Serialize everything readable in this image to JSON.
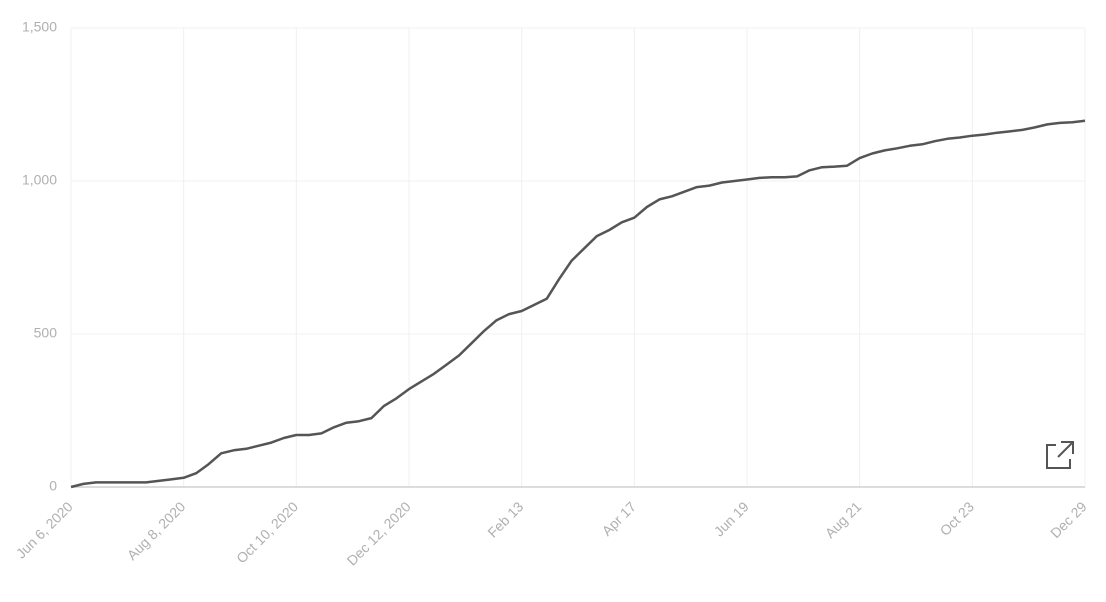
{
  "chart_data": {
    "type": "line",
    "categories": [
      "Jun 6, 2020",
      null,
      null,
      null,
      null,
      null,
      null,
      null,
      null,
      "Aug 8, 2020",
      null,
      null,
      null,
      null,
      null,
      null,
      null,
      null,
      "Oct 10, 2020",
      null,
      null,
      null,
      null,
      null,
      null,
      null,
      null,
      "Dec 12, 2020",
      null,
      null,
      null,
      null,
      null,
      null,
      null,
      null,
      "Feb 13",
      null,
      null,
      null,
      null,
      null,
      null,
      null,
      null,
      "Apr 17",
      null,
      null,
      null,
      null,
      null,
      null,
      null,
      null,
      "Jun 19",
      null,
      null,
      null,
      null,
      null,
      null,
      null,
      null,
      "Aug 21",
      null,
      null,
      null,
      null,
      null,
      null,
      null,
      null,
      "Oct 23",
      null,
      null,
      null,
      null,
      null,
      null,
      null,
      null,
      "Dec 29"
    ],
    "values": [
      0,
      10,
      15,
      15,
      15,
      15,
      15,
      20,
      25,
      30,
      45,
      75,
      110,
      120,
      125,
      135,
      145,
      160,
      170,
      170,
      175,
      195,
      210,
      215,
      225,
      265,
      290,
      320,
      345,
      370,
      400,
      430,
      470,
      510,
      545,
      565,
      575,
      595,
      615,
      680,
      740,
      780,
      820,
      840,
      865,
      880,
      915,
      940,
      950,
      965,
      980,
      985,
      995,
      1000,
      1005,
      1010,
      1012,
      1012,
      1015,
      1035,
      1045,
      1047,
      1050,
      1075,
      1090,
      1100,
      1107,
      1115,
      1120,
      1130,
      1138,
      1142,
      1148,
      1152,
      1158,
      1162,
      1167,
      1175,
      1185,
      1190,
      1192,
      1197
    ],
    "color": "#555555",
    "ylim": [
      0,
      1500
    ],
    "yticks": [
      0,
      500,
      {
        "value": 1000,
        "label": "1,000"
      },
      {
        "value": 1500,
        "label": "1,500"
      }
    ],
    "grid": true
  }
}
